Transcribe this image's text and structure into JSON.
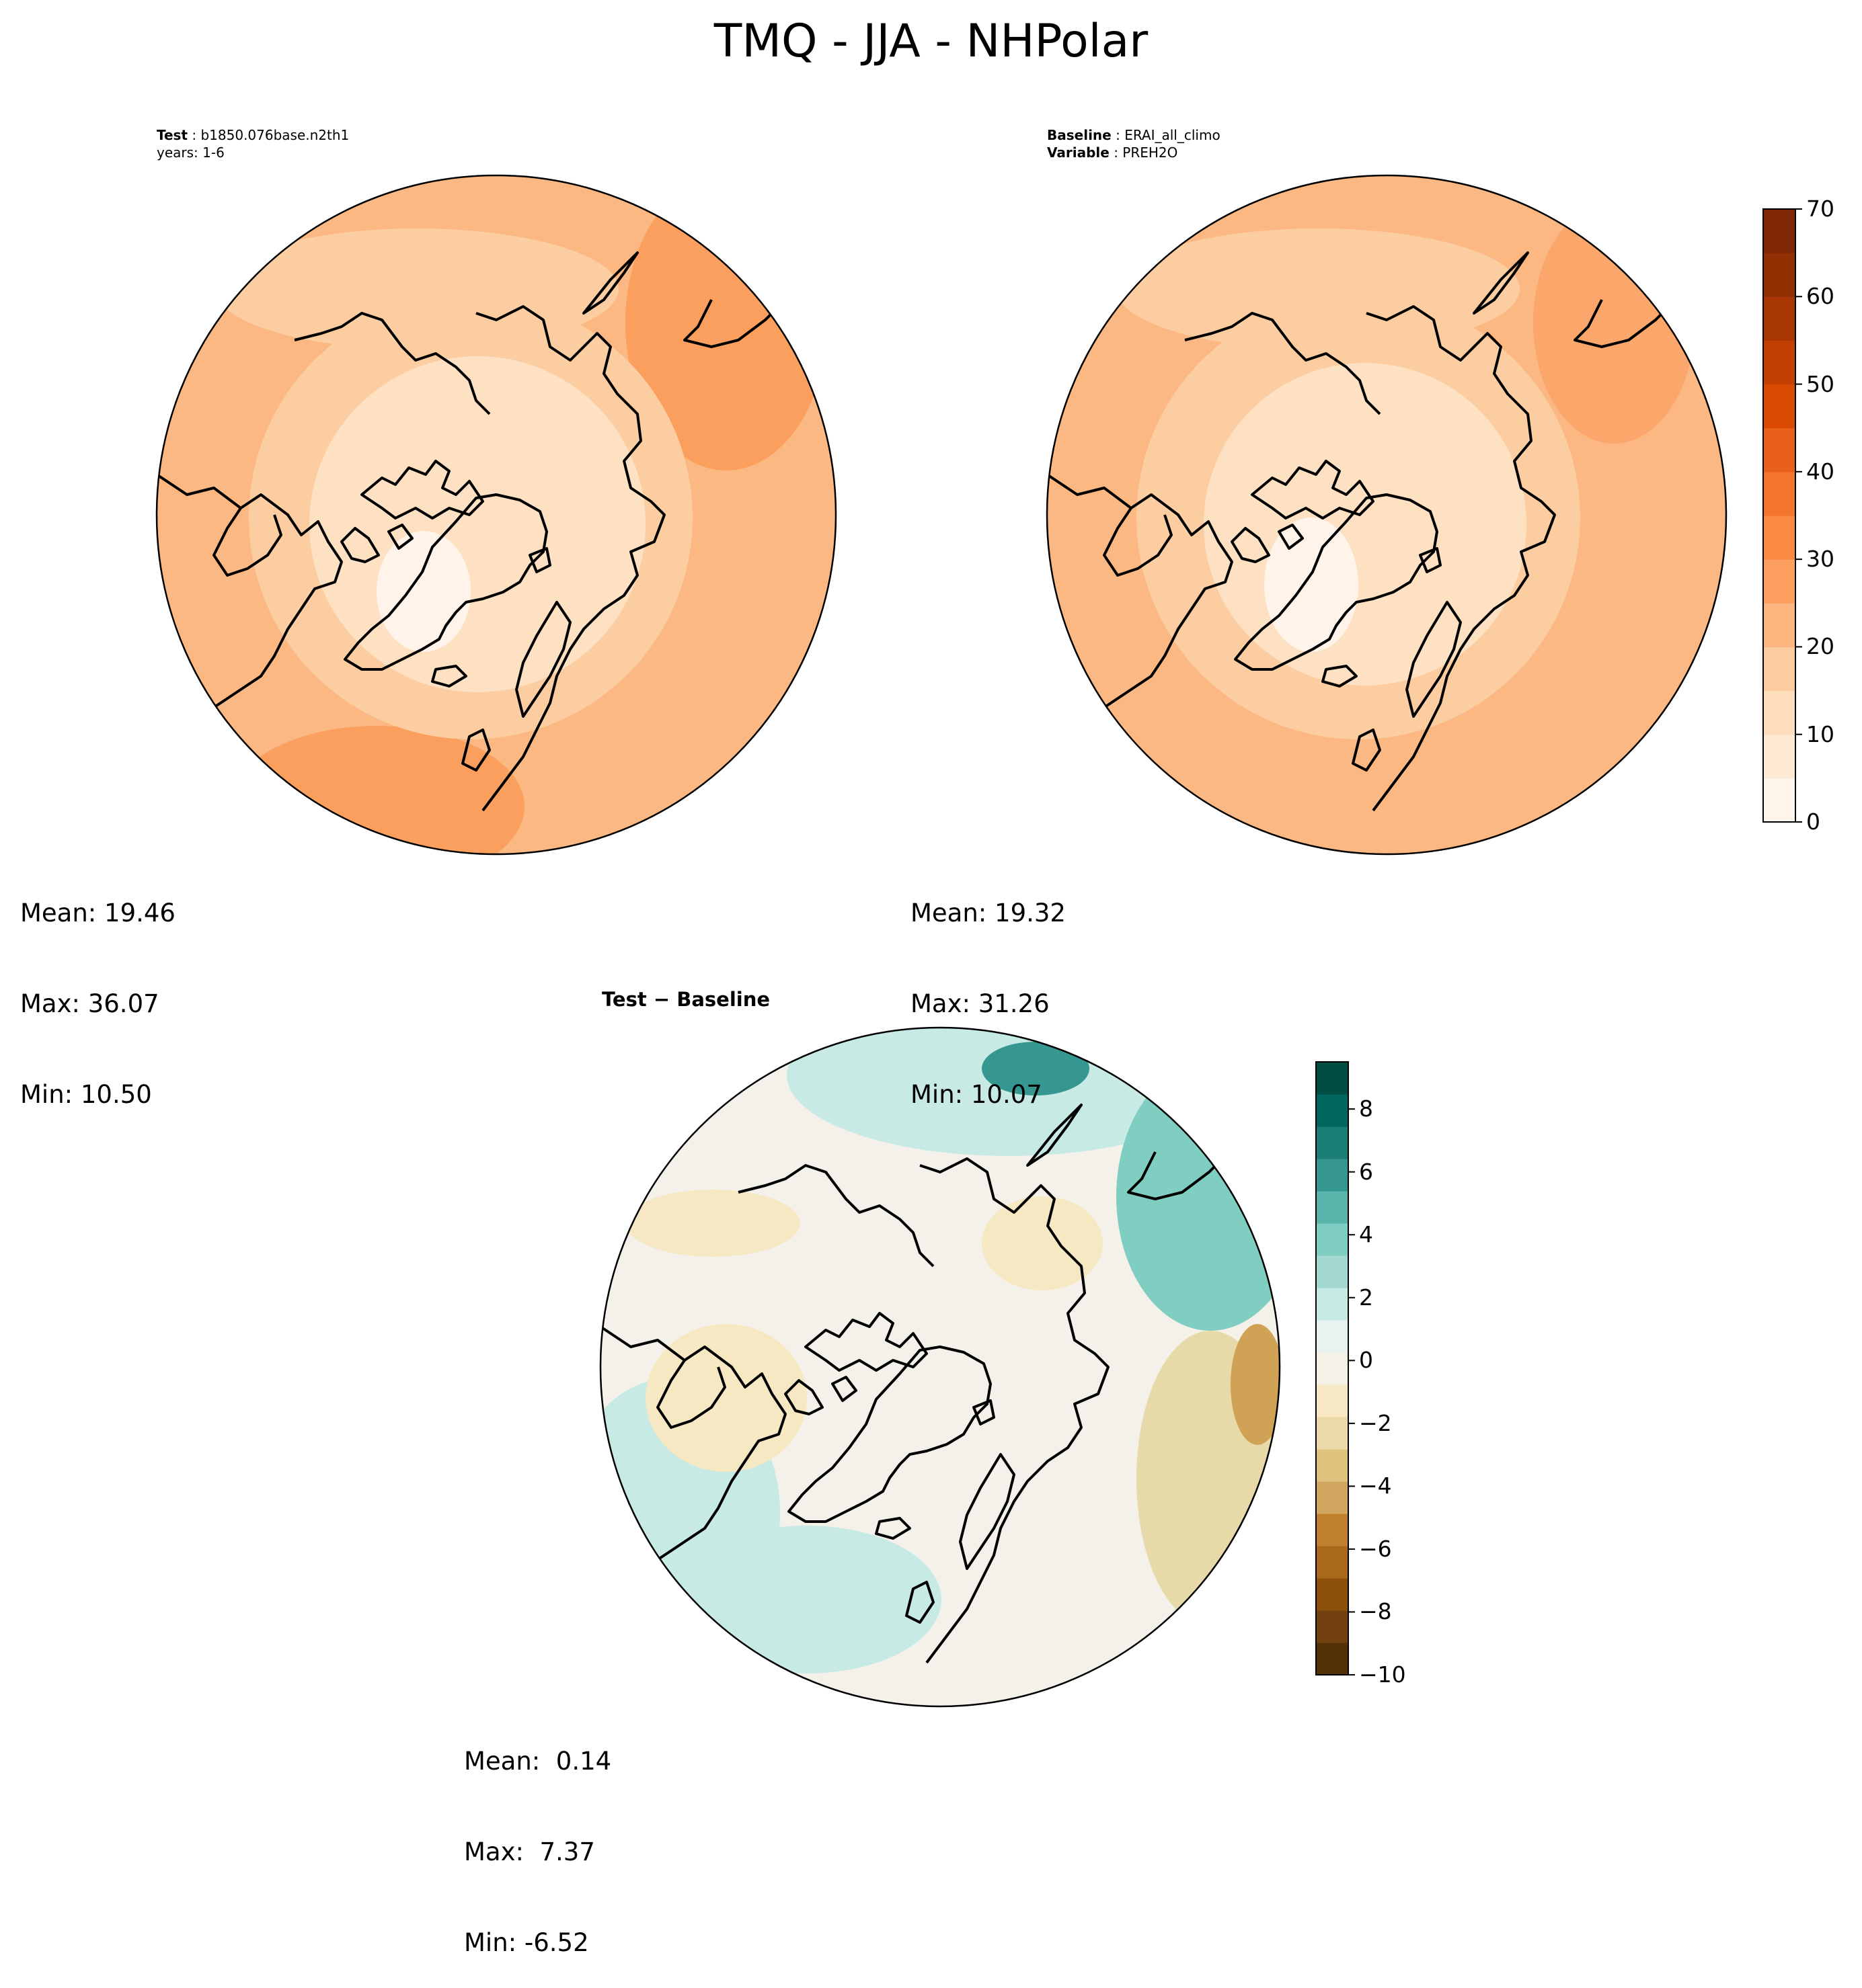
{
  "title": "TMQ - JJA - NHPolar",
  "panels": {
    "test": {
      "header": [
        {
          "label": "Test",
          "value": "b1850.076base.n2th1"
        },
        {
          "label": "",
          "value": "years: 1-6"
        }
      ],
      "stats": {
        "mean": "Mean: 19.46",
        "max": "Max: 36.07",
        "min": "Min: 10.50"
      }
    },
    "baseline": {
      "header": [
        {
          "label": "Baseline",
          "value": "ERAI_all_climo"
        },
        {
          "label": "Variable",
          "value": "PREH2O"
        }
      ],
      "stats": {
        "mean": "Mean: 19.32",
        "max": "Max: 31.26",
        "min": "Min: 10.07"
      }
    },
    "diff": {
      "title": "Test − Baseline",
      "stats": {
        "mean": "Mean:  0.14",
        "max": "Max:  7.37",
        "min": "Min: -6.52"
      }
    }
  },
  "colorbars": {
    "field": {
      "ticks": [
        "0",
        "10",
        "20",
        "30",
        "40",
        "50",
        "60",
        "70"
      ],
      "levels": [
        0,
        5,
        10,
        15,
        20,
        25,
        30,
        35,
        40,
        45,
        50,
        55,
        60,
        65,
        70
      ],
      "colormap": "Oranges"
    },
    "diff": {
      "ticks": [
        "−10",
        "−8",
        "−6",
        "−4",
        "−2",
        "0",
        "2",
        "4",
        "6",
        "8"
      ],
      "levels": [
        -10,
        -9,
        -8,
        -7,
        -6,
        -5,
        -4,
        -3,
        -2,
        -1,
        0,
        1,
        2,
        3,
        4,
        5,
        6,
        7,
        8,
        9
      ],
      "colormap": "BrBG"
    }
  }
}
